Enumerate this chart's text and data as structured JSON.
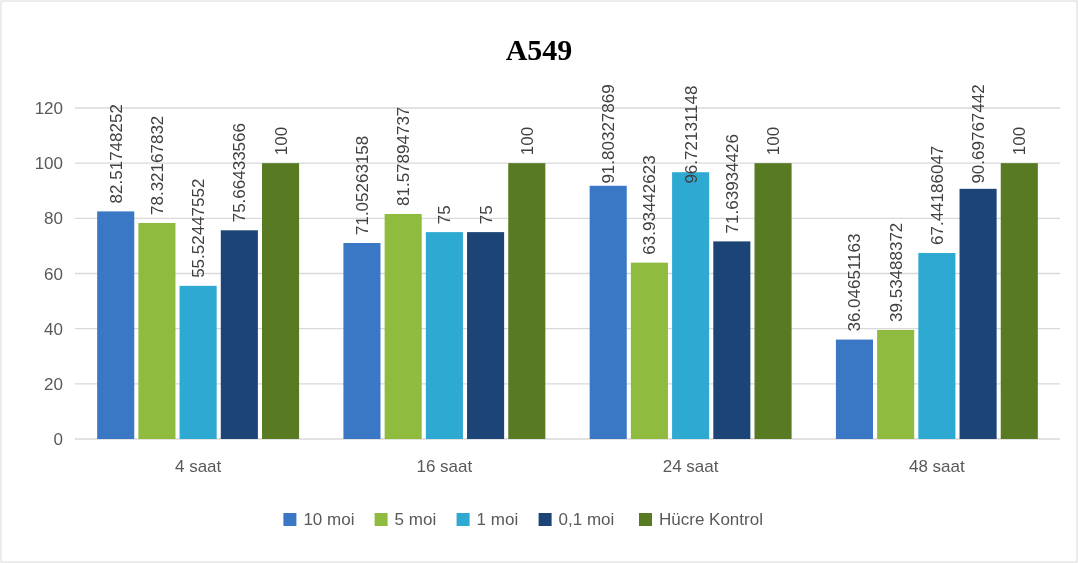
{
  "chart_data": {
    "type": "bar",
    "title": "A549",
    "categories": [
      "4 saat",
      "16 saat",
      "24 saat",
      "48 saat"
    ],
    "series": [
      {
        "name": "10 moi",
        "color": "#3a78c6",
        "values": [
          82.51748252,
          71.05263158,
          91.80327869,
          36.04651163
        ]
      },
      {
        "name": "5 moi",
        "color": "#8fbc3f",
        "values": [
          78.32167832,
          81.57894737,
          63.93442623,
          39.53488372
        ]
      },
      {
        "name": "1 moi",
        "color": "#2ea9d1",
        "values": [
          55.52447552,
          75,
          96.72131148,
          67.44186047
        ]
      },
      {
        "name": "0,1 moi",
        "color": "#1d4476",
        "values": [
          75.66433566,
          75,
          71.63934426,
          90.69767442
        ]
      },
      {
        "name": "Hücre Kontrol",
        "color": "#577a23",
        "values": [
          100,
          100,
          100,
          100
        ]
      }
    ],
    "ylim": [
      0,
      120
    ],
    "yticks": [
      0,
      20,
      40,
      60,
      80,
      100,
      120
    ],
    "grid": "y",
    "legend": "bottom",
    "data_labels": true
  }
}
